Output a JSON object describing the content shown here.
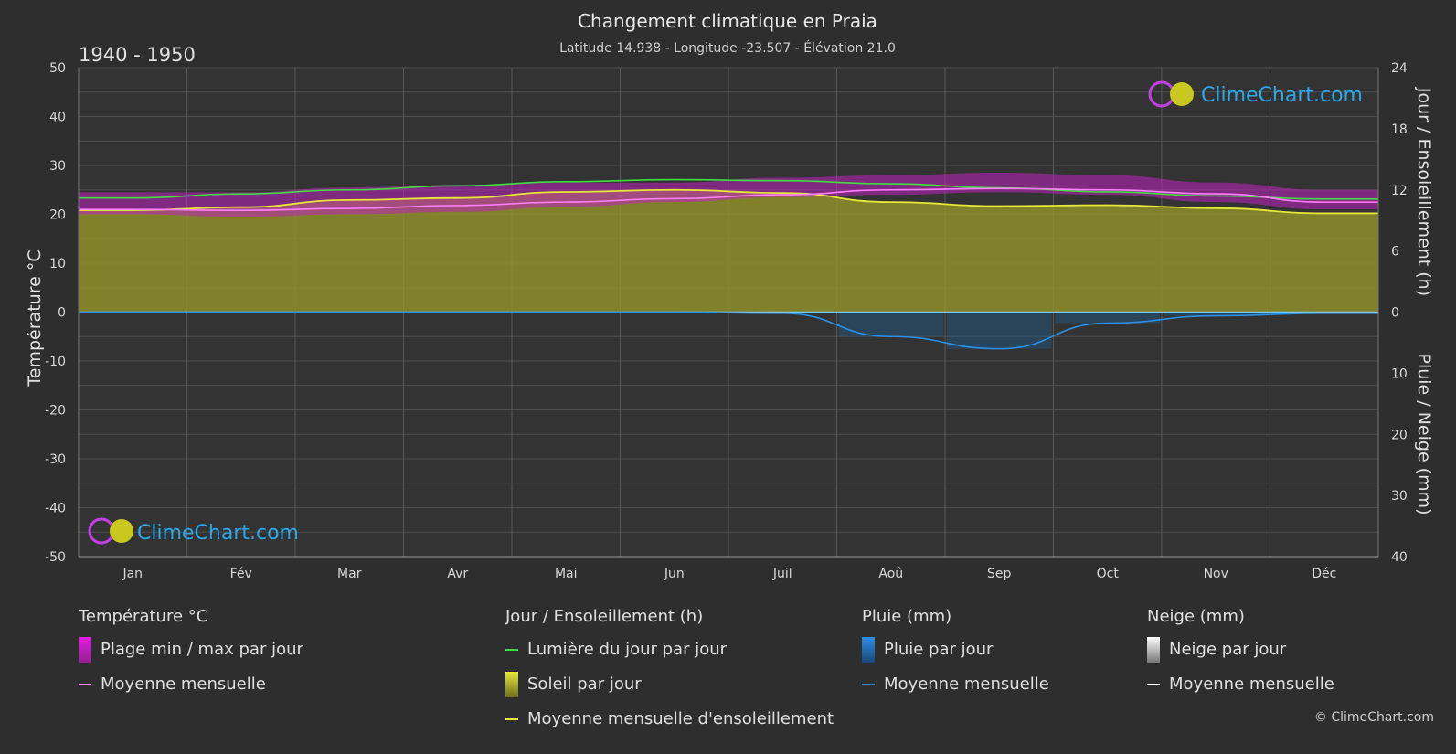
{
  "chart_data": {
    "type": "area",
    "title": "Changement climatique en Praia",
    "subtitle": "Latitude 14.938 - Longitude -23.507 - Élévation 21.0",
    "period": "1940 - 1950",
    "categories": [
      "Jan",
      "Fév",
      "Mar",
      "Avr",
      "Mai",
      "Jun",
      "Juil",
      "Aoû",
      "Sep",
      "Oct",
      "Nov",
      "Déc"
    ],
    "y_left": {
      "label": "Température °C",
      "min": -50,
      "max": 50,
      "ticks": [
        50,
        40,
        30,
        20,
        10,
        0,
        -10,
        -20,
        -30,
        -40,
        -50
      ]
    },
    "y_right_top": {
      "label": "Jour / Ensoleillement (h)",
      "min": 0,
      "max": 24,
      "ticks": [
        24,
        18,
        12,
        6,
        0
      ]
    },
    "y_right_bottom": {
      "label": "Pluie / Neige (mm)",
      "min": 0,
      "max": 40,
      "ticks": [
        0,
        10,
        20,
        30,
        40
      ]
    },
    "series": [
      {
        "name": "Plage min / max par jour",
        "min": [
          20.0,
          19.5,
          20.0,
          20.5,
          21.5,
          22.5,
          23.5,
          24.0,
          24.5,
          24.0,
          22.5,
          21.0
        ],
        "max": [
          24.5,
          24.5,
          25.5,
          26.0,
          26.5,
          26.5,
          27.5,
          28.0,
          28.5,
          28.0,
          26.5,
          25.0
        ]
      },
      {
        "name": "Moyenne mensuelle (température)",
        "values": [
          21.0,
          20.8,
          21.2,
          21.8,
          22.5,
          23.2,
          24.0,
          25.0,
          25.3,
          25.0,
          24.2,
          22.5
        ]
      },
      {
        "name": "Lumière du jour par jour",
        "values": [
          11.2,
          11.6,
          12.0,
          12.4,
          12.8,
          13.0,
          12.9,
          12.6,
          12.2,
          11.8,
          11.4,
          11.1
        ]
      },
      {
        "name": "Moyenne mensuelle d'ensoleillement",
        "values": [
          10.0,
          10.3,
          11.0,
          11.2,
          11.8,
          12.0,
          11.7,
          10.8,
          10.4,
          10.5,
          10.2,
          9.7
        ]
      },
      {
        "name": "Moyenne mensuelle (pluie)",
        "values": [
          0.0,
          0.0,
          0.0,
          0.0,
          0.0,
          0.0,
          0.2,
          4.0,
          6.0,
          1.8,
          0.6,
          0.2
        ]
      },
      {
        "name": "Moyenne mensuelle (neige)",
        "values": [
          0,
          0,
          0,
          0,
          0,
          0,
          0,
          0,
          0,
          0,
          0,
          0
        ]
      }
    ],
    "grid": true,
    "colors": {
      "background": "#2e2e2e",
      "temp_range": "#d020d0",
      "temp_mean": "#ff80ff",
      "daylight": "#40e040",
      "sunshine_fill": "#9a9a28",
      "sunshine_mean": "#e8e838",
      "rain": "#2888d8",
      "snow": "#ffffff"
    }
  },
  "watermark": "ClimeChart.com",
  "copyright": "© ClimeChart.com",
  "legend": {
    "temperature": {
      "title": "Température °C",
      "items": [
        "Plage min / max par jour",
        "Moyenne mensuelle"
      ]
    },
    "sun": {
      "title": "Jour / Ensoleillement (h)",
      "items": [
        "Lumière du jour par jour",
        "Soleil par jour",
        "Moyenne mensuelle d'ensoleillement"
      ]
    },
    "rain": {
      "title": "Pluie (mm)",
      "items": [
        "Pluie par jour",
        "Moyenne mensuelle"
      ]
    },
    "snow": {
      "title": "Neige (mm)",
      "items": [
        "Neige par jour",
        "Moyenne mensuelle"
      ]
    }
  }
}
